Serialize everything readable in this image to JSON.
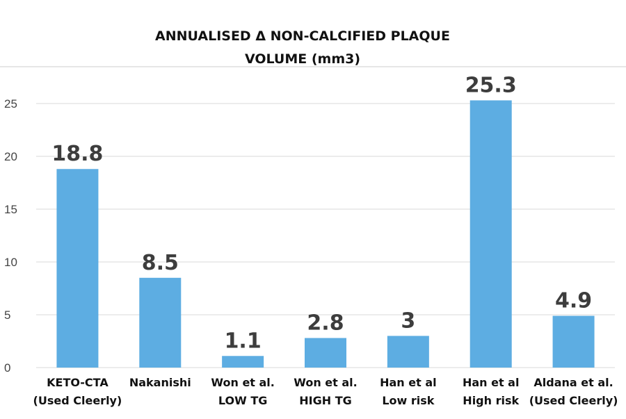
{
  "chart_data": {
    "type": "bar",
    "title": [
      "ANNUALISED Δ NON-CALCIFIED PLAQUE",
      "VOLUME (mm3)"
    ],
    "xlabel": "",
    "ylabel": "",
    "ylim": [
      0,
      25
    ],
    "yticks": [
      0,
      5,
      10,
      15,
      20,
      25
    ],
    "grid": true,
    "bar_color": "#5dade2",
    "highlight_color": "#b22222",
    "categories": [
      {
        "lines": [
          {
            "text": "KETO-CTA",
            "highlight": true
          },
          {
            "text": "(Used Cleerly)",
            "highlight": false
          }
        ]
      },
      {
        "lines": [
          {
            "text": "Nakanishi",
            "highlight": false
          }
        ]
      },
      {
        "lines": [
          {
            "text": "Won et al.",
            "highlight": false
          },
          {
            "text": "LOW TG",
            "highlight": false
          }
        ]
      },
      {
        "lines": [
          {
            "text": "Won et al.",
            "highlight": false
          },
          {
            "text": "HIGH TG",
            "highlight": false
          }
        ]
      },
      {
        "lines": [
          {
            "text": "Han et al",
            "highlight": false
          },
          {
            "text": "Low risk",
            "highlight": false
          }
        ]
      },
      {
        "lines": [
          {
            "text": "Han et al",
            "highlight": false
          },
          {
            "text": "High risk",
            "highlight": true
          }
        ]
      },
      {
        "lines": [
          {
            "text": "Aldana et al.",
            "highlight": false
          },
          {
            "text": "(Used Cleerly)",
            "highlight": false
          }
        ]
      }
    ],
    "values": [
      18.8,
      8.5,
      1.1,
      2.8,
      3,
      25.3,
      4.9
    ],
    "data_labels": [
      "18.8",
      "8.5",
      "1.1",
      "2.8",
      "3",
      "25.3",
      "4.9"
    ]
  }
}
